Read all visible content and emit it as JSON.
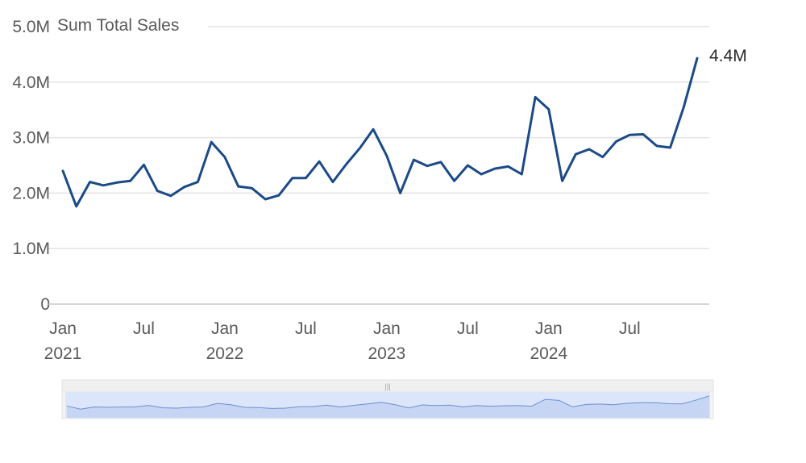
{
  "chart_data": {
    "type": "line",
    "y_axis_title": "Sum Total Sales",
    "y_ticks": [
      {
        "value": 0,
        "label": "0"
      },
      {
        "value": 1000000,
        "label": "1.0M"
      },
      {
        "value": 2000000,
        "label": "2.0M"
      },
      {
        "value": 3000000,
        "label": "3.0M"
      },
      {
        "value": 4000000,
        "label": "4.0M"
      },
      {
        "value": 5000000,
        "label": "5.0M"
      }
    ],
    "ylim": [
      0,
      5000000
    ],
    "x_ticks": [
      {
        "date": "2021-01",
        "label": "Jan",
        "year": "2021"
      },
      {
        "date": "2021-07",
        "label": "Jul",
        "year": ""
      },
      {
        "date": "2022-01",
        "label": "Jan",
        "year": "2022"
      },
      {
        "date": "2022-07",
        "label": "Jul",
        "year": ""
      },
      {
        "date": "2023-01",
        "label": "Jan",
        "year": "2023"
      },
      {
        "date": "2023-07",
        "label": "Jul",
        "year": ""
      },
      {
        "date": "2024-01",
        "label": "Jan",
        "year": "2024"
      },
      {
        "date": "2024-07",
        "label": "Jul",
        "year": ""
      }
    ],
    "xlim": [
      "2021-01",
      "2024-12"
    ],
    "grid": true,
    "line_color": "#1b4a87",
    "last_value_label": "4.4M",
    "series": [
      {
        "x": [
          "2021-01",
          "2021-02",
          "2021-03",
          "2021-04",
          "2021-05",
          "2021-06",
          "2021-07",
          "2021-08",
          "2021-09",
          "2021-10",
          "2021-11",
          "2021-12",
          "2022-01",
          "2022-02",
          "2022-03",
          "2022-04",
          "2022-05",
          "2022-06",
          "2022-07",
          "2022-08",
          "2022-09",
          "2022-10",
          "2022-11",
          "2022-12",
          "2023-01",
          "2023-02",
          "2023-03",
          "2023-04",
          "2023-05",
          "2023-06",
          "2023-07",
          "2023-08",
          "2023-09",
          "2023-10",
          "2023-11",
          "2023-12",
          "2024-01",
          "2024-02",
          "2024-03",
          "2024-04",
          "2024-05",
          "2024-06",
          "2024-07",
          "2024-08",
          "2024-09",
          "2024-10",
          "2024-11",
          "2024-12"
        ],
        "values": [
          2400000,
          1760000,
          2200000,
          2140000,
          2190000,
          2220000,
          2510000,
          2040000,
          1950000,
          2110000,
          2200000,
          2920000,
          2650000,
          2120000,
          2090000,
          1890000,
          1960000,
          2270000,
          2270000,
          2570000,
          2200000,
          2520000,
          2810000,
          3150000,
          2670000,
          2000000,
          2600000,
          2490000,
          2560000,
          2220000,
          2500000,
          2340000,
          2440000,
          2480000,
          2340000,
          3730000,
          3510000,
          2220000,
          2700000,
          2790000,
          2650000,
          2930000,
          3050000,
          3060000,
          2850000,
          2820000,
          3550000,
          4430000
        ]
      }
    ]
  },
  "navigator": {
    "handle_glyph": "|||"
  }
}
